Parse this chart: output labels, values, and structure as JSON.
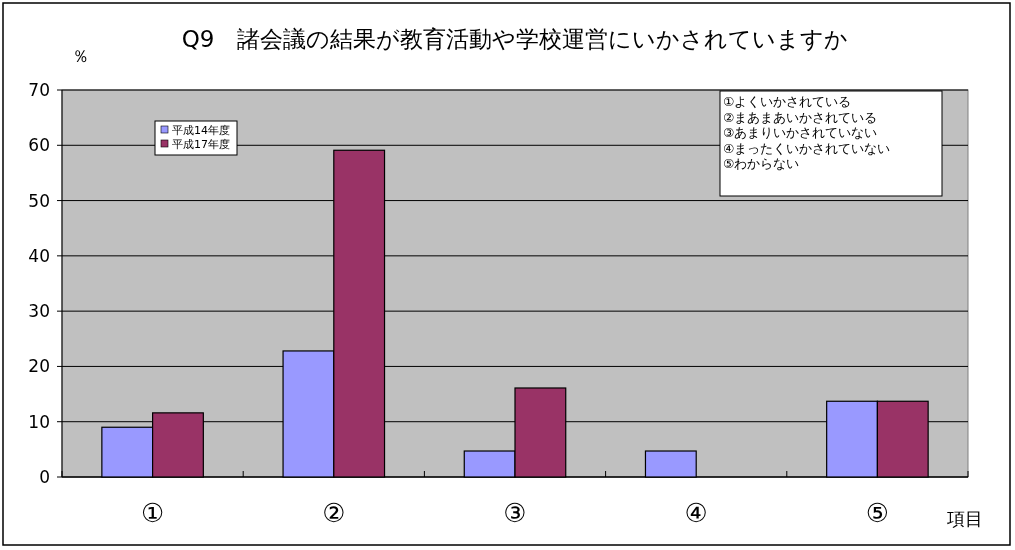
{
  "chart_data": {
    "type": "bar",
    "title": "Q9　諸会議の結果が教育活動や学校運営にいかされていますか",
    "ylabel": "％",
    "xlabel": "項目",
    "categories": [
      "①",
      "②",
      "③",
      "④",
      "⑤"
    ],
    "series": [
      {
        "name": "平成14年度",
        "color": "#9999ff",
        "values": [
          9.0,
          22.8,
          4.7,
          4.7,
          13.7
        ]
      },
      {
        "name": "平成17年度",
        "color": "#993366",
        "values": [
          11.6,
          59.1,
          16.1,
          0,
          13.7
        ]
      }
    ],
    "ylim": [
      0,
      70
    ],
    "yticks": [
      0,
      10,
      20,
      30,
      40,
      50,
      60,
      70
    ],
    "grid": "y",
    "legend": "top left",
    "annotations": [
      "①よくいかされている",
      "②まあまあいかされている",
      "③あまりいかされていない",
      "④まったくいかされていない",
      "⑤わからない"
    ]
  }
}
